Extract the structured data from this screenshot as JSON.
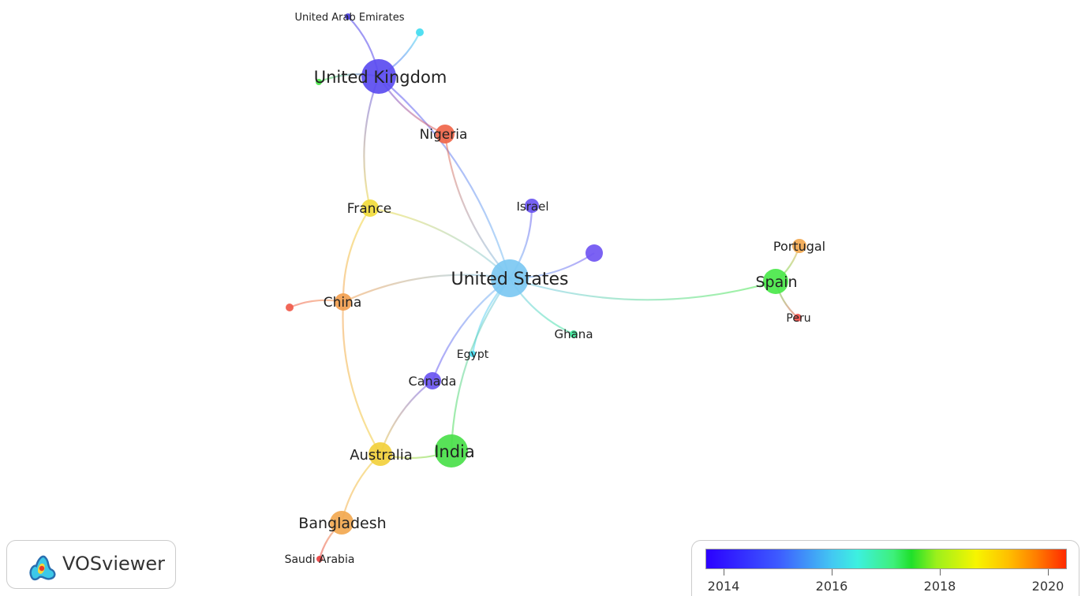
{
  "app": {
    "name": "VOSviewer"
  },
  "legend": {
    "ticks": [
      "2014",
      "2016",
      "2018",
      "2020"
    ],
    "colors": [
      "#2b00ff",
      "#43c8f2",
      "#1fe02a",
      "#f7f500",
      "#ff2a00"
    ]
  },
  "network": {
    "nodes": [
      {
        "id": "us",
        "label": "United States",
        "color": "#7cc8f2"
      },
      {
        "id": "uk",
        "label": "United Kingdom",
        "color": "#5b4cf0"
      },
      {
        "id": "uae",
        "label": "United Arab Emirates",
        "color": "#4a3ee8"
      },
      {
        "id": "ng",
        "label": "Nigeria",
        "color": "#f0664a"
      },
      {
        "id": "fr",
        "label": "France",
        "color": "#f2dc3c"
      },
      {
        "id": "cn",
        "label": "China",
        "color": "#f2a050"
      },
      {
        "id": "il",
        "label": "Israel",
        "color": "#6a55f0"
      },
      {
        "id": "es",
        "label": "Spain",
        "color": "#4ae84a"
      },
      {
        "id": "pt",
        "label": "Portugal",
        "color": "#f2a850"
      },
      {
        "id": "pe",
        "label": "Peru",
        "color": "#f0504a"
      },
      {
        "id": "gh",
        "label": "Ghana",
        "color": "#3ee89a"
      },
      {
        "id": "eg",
        "label": "Egypt",
        "color": "#4adcf0"
      },
      {
        "id": "ca",
        "label": "Canada",
        "color": "#6a55f0"
      },
      {
        "id": "in",
        "label": "India",
        "color": "#4ae04a"
      },
      {
        "id": "au",
        "label": "Australia",
        "color": "#f2d03c"
      },
      {
        "id": "bd",
        "label": "Bangladesh",
        "color": "#f2a850"
      },
      {
        "id": "sa",
        "label": "Saudi Arabia",
        "color": "#e84040"
      },
      {
        "id": "n1",
        "label": "",
        "color": "#43dcf0"
      },
      {
        "id": "n2",
        "label": "",
        "color": "#4ae84a"
      },
      {
        "id": "n3",
        "label": "",
        "color": "#7055f2"
      },
      {
        "id": "n4",
        "label": "",
        "color": "#f05a4a"
      }
    ],
    "links": [
      [
        "us",
        "uk"
      ],
      [
        "us",
        "fr"
      ],
      [
        "us",
        "cn"
      ],
      [
        "us",
        "il"
      ],
      [
        "us",
        "es"
      ],
      [
        "us",
        "gh"
      ],
      [
        "us",
        "eg"
      ],
      [
        "us",
        "ca"
      ],
      [
        "us",
        "in"
      ],
      [
        "us",
        "n3"
      ],
      [
        "uk",
        "uae"
      ],
      [
        "uk",
        "n1"
      ],
      [
        "uk",
        "n2"
      ],
      [
        "uk",
        "ng"
      ],
      [
        "uk",
        "fr"
      ],
      [
        "ng",
        "us"
      ],
      [
        "fr",
        "cn"
      ],
      [
        "cn",
        "au"
      ],
      [
        "cn",
        "n4"
      ],
      [
        "ca",
        "au"
      ],
      [
        "au",
        "in"
      ],
      [
        "au",
        "bd"
      ],
      [
        "bd",
        "sa"
      ],
      [
        "es",
        "pt"
      ],
      [
        "es",
        "pe"
      ]
    ]
  }
}
